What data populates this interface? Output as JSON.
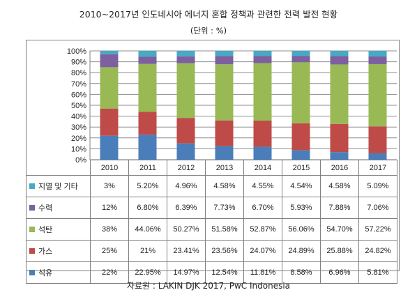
{
  "title": "2010~2017년 인도네시아 에너지 혼합 정책과 관련한 전력 발전 현황",
  "subtitle": "(단위 : %)",
  "source": "자료원 : LAKIN DJK 2017, PwC Indonesia",
  "chart_data": {
    "type": "bar",
    "stacked": "percent",
    "categories": [
      "2010",
      "2011",
      "2012",
      "2013",
      "2014",
      "2015",
      "2016",
      "2017"
    ],
    "ylim": [
      0,
      100
    ],
    "yticks": [
      "0%",
      "10%",
      "20%",
      "30%",
      "40%",
      "50%",
      "60%",
      "70%",
      "80%",
      "90%",
      "100%"
    ],
    "grid": true,
    "legend": "table-left",
    "series": [
      {
        "name": "석유",
        "color": "#4a7ebb",
        "values": [
          22,
          22.95,
          14.97,
          12.54,
          11.81,
          8.58,
          6.96,
          5.81
        ],
        "labels": [
          "22%",
          "22.95%",
          "14.97%",
          "12.54%",
          "11.81%",
          "8.58%",
          "6.96%",
          "5.81%"
        ]
      },
      {
        "name": "가스",
        "color": "#be4b48",
        "values": [
          25,
          21,
          23.41,
          23.56,
          24.07,
          24.89,
          25.88,
          24.82
        ],
        "labels": [
          "25%",
          "21%",
          "23.41%",
          "23.56%",
          "24.07%",
          "24.89%",
          "25.88%",
          "24.82%"
        ]
      },
      {
        "name": "석탄",
        "color": "#98b954",
        "values": [
          38,
          44.06,
          50.27,
          51.58,
          52.87,
          56.06,
          54.7,
          57.22
        ],
        "labels": [
          "38%",
          "44.06%",
          "50.27%",
          "51.58%",
          "52.87%",
          "56.06%",
          "54.70%",
          "57.22%"
        ]
      },
      {
        "name": "수력",
        "color": "#7d60a0",
        "values": [
          12,
          6.8,
          6.39,
          7.73,
          6.7,
          5.93,
          7.88,
          7.06
        ],
        "labels": [
          "12%",
          "6.80%",
          "6.39%",
          "7.73%",
          "6.70%",
          "5.93%",
          "7.88%",
          "7.06%"
        ]
      },
      {
        "name": "지열 및 기타",
        "color": "#46aac5",
        "values": [
          3,
          5.2,
          4.96,
          4.58,
          4.55,
          4.54,
          4.58,
          5.09
        ],
        "labels": [
          "3%",
          "5.20%",
          "4.96%",
          "4.58%",
          "4.55%",
          "4.54%",
          "4.58%",
          "5.09%"
        ]
      }
    ],
    "table_row_order": [
      4,
      3,
      2,
      1,
      0
    ]
  }
}
